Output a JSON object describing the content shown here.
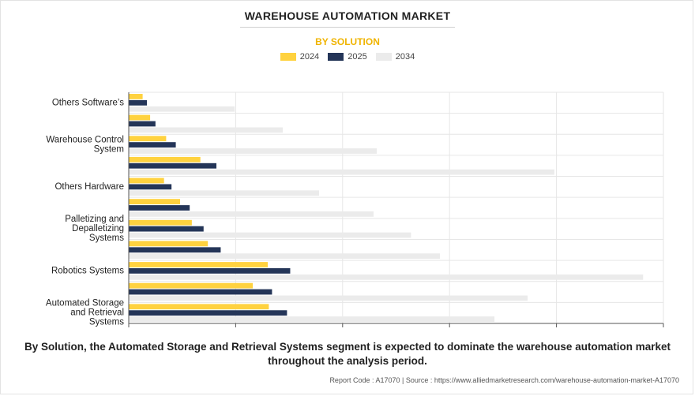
{
  "title": "WAREHOUSE AUTOMATION MARKET",
  "subtitle": "BY SOLUTION",
  "caption": "By Solution, the Automated Storage and Retrieval Systems segment is expected to dominate the warehouse automation market throughout the analysis period.",
  "footer": "Report Code : A17070  |  Source : https://www.alliedmarketresearch.com/warehouse-automation-market-A17070",
  "colors": {
    "2024": "#ffd23f",
    "2025": "#243558",
    "2034": "#ebebeb",
    "subtitle": "#f0b400"
  },
  "chart_data": {
    "type": "bar",
    "orientation": "horizontal",
    "title": "WAREHOUSE AUTOMATION MARKET",
    "subtitle": "BY SOLUTION",
    "categories": [
      "Others Software’s",
      "",
      "Warehouse Control System",
      "",
      "Others Hardware",
      "",
      "Palletizing and Depalletizing Systems",
      "",
      "Robotics Systems",
      "",
      "Automated Storage and Retrieval Systems"
    ],
    "series": [
      {
        "name": "2024",
        "values": [
          0.65,
          1.0,
          1.75,
          3.35,
          1.65,
          2.4,
          2.95,
          3.7,
          6.5,
          5.8,
          6.55
        ]
      },
      {
        "name": "2025",
        "values": [
          0.85,
          1.25,
          2.2,
          4.1,
          2.0,
          2.85,
          3.5,
          4.3,
          7.55,
          6.7,
          7.4
        ]
      },
      {
        "name": "2034",
        "values": [
          4.95,
          7.2,
          11.6,
          19.9,
          8.9,
          11.45,
          13.2,
          14.55,
          24.05,
          18.65,
          17.1
        ]
      }
    ],
    "xlim": [
      0,
      25
    ],
    "xticks": [
      0,
      5,
      10,
      15,
      20,
      25
    ],
    "xtick_labels_shown": false,
    "grid": true,
    "legend": "top-center",
    "xlabel": "",
    "ylabel": ""
  }
}
